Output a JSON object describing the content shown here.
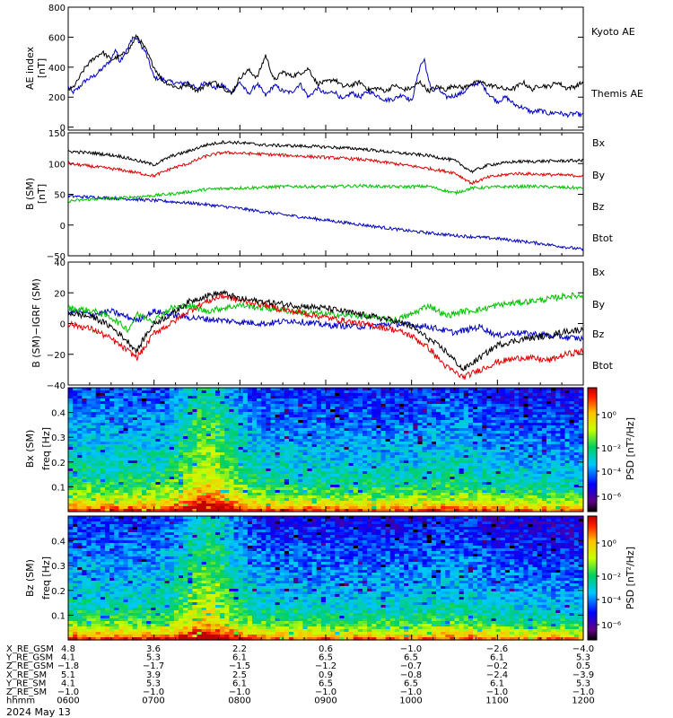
{
  "chart_data": [
    {
      "type": "line",
      "panel": "ae",
      "ylabel_top": "AE index",
      "ylabel_bottom": "[nT]",
      "ylim": [
        -20,
        800
      ],
      "yticks": [
        "800",
        "600",
        "400",
        "200",
        "0"
      ],
      "xlim_hours": [
        6.0,
        12.0
      ],
      "series": [
        {
          "name": "Kyoto AE",
          "color": "#0000c0",
          "x": [
            6.0,
            6.05,
            6.1,
            6.2,
            6.3,
            6.4,
            6.5,
            6.55,
            6.6,
            6.7,
            6.75,
            6.8,
            6.9,
            6.95,
            7.0,
            7.1,
            7.2,
            7.3,
            7.4,
            7.5,
            7.6,
            7.7,
            7.8,
            7.9,
            8.0,
            8.1,
            8.2,
            8.3,
            8.4,
            8.5,
            8.6,
            8.7,
            8.8,
            8.9,
            9.0,
            9.1,
            9.2,
            9.3,
            9.4,
            9.5,
            9.6,
            9.7,
            9.8,
            9.9,
            10.0,
            10.1,
            10.15,
            10.2,
            10.25,
            10.3,
            10.4,
            10.5,
            10.6,
            10.7,
            10.8,
            10.9,
            11.0,
            11.1,
            11.2,
            11.3,
            11.4,
            11.5,
            11.6,
            11.7,
            11.8,
            11.9,
            12.0
          ],
          "y": [
            270,
            230,
            250,
            310,
            340,
            390,
            450,
            520,
            440,
            530,
            600,
            590,
            500,
            420,
            330,
            320,
            300,
            290,
            300,
            250,
            310,
            260,
            280,
            230,
            300,
            220,
            290,
            210,
            280,
            240,
            230,
            290,
            200,
            260,
            220,
            240,
            180,
            230,
            200,
            240,
            210,
            180,
            190,
            220,
            170,
            410,
            450,
            300,
            240,
            260,
            200,
            210,
            230,
            280,
            300,
            220,
            170,
            200,
            150,
            130,
            100,
            110,
            90,
            100,
            80,
            90,
            80
          ]
        },
        {
          "name": "Themis AE",
          "color": "#000000",
          "x": [
            6.0,
            6.05,
            6.1,
            6.2,
            6.3,
            6.4,
            6.5,
            6.6,
            6.7,
            6.8,
            6.9,
            7.0,
            7.1,
            7.2,
            7.3,
            7.4,
            7.5,
            7.6,
            7.7,
            7.8,
            7.9,
            8.0,
            8.1,
            8.2,
            8.3,
            8.4,
            8.5,
            8.6,
            8.7,
            8.8,
            8.9,
            9.0,
            9.1,
            9.2,
            9.3,
            9.4,
            9.5,
            9.6,
            9.7,
            9.8,
            9.9,
            10.0,
            10.1,
            10.2,
            10.3,
            10.4,
            10.5,
            10.6,
            10.7,
            10.8,
            10.9,
            11.0,
            11.1,
            11.2,
            11.3,
            11.4,
            11.5,
            11.6,
            11.7,
            11.8,
            11.9,
            12.0
          ],
          "y": [
            250,
            260,
            300,
            400,
            460,
            500,
            450,
            470,
            510,
            610,
            520,
            400,
            310,
            280,
            260,
            290,
            240,
            280,
            300,
            270,
            220,
            330,
            380,
            330,
            480,
            310,
            370,
            340,
            360,
            390,
            290,
            300,
            320,
            270,
            280,
            300,
            250,
            260,
            240,
            280,
            250,
            260,
            300,
            240,
            270,
            250,
            280,
            260,
            290,
            300,
            280,
            270,
            250,
            260,
            300,
            250,
            280,
            270,
            300,
            260,
            270,
            300
          ]
        }
      ]
    },
    {
      "type": "line",
      "panel": "b_sm",
      "ylabel_top": "B (SM)",
      "ylabel_bottom": "[nT]",
      "ylim": [
        -50,
        150
      ],
      "yticks": [
        "150",
        "100",
        "50",
        "0",
        "−50"
      ],
      "xlim_hours": [
        6.0,
        12.0
      ],
      "series": [
        {
          "name": "Bx",
          "color": "#0000c0",
          "x": [
            6.0,
            6.5,
            7.0,
            7.5,
            8.0,
            8.5,
            9.0,
            9.5,
            10.0,
            10.5,
            11.0,
            11.5,
            12.0
          ],
          "y": [
            47,
            44,
            40,
            35,
            27,
            17,
            8,
            -1,
            -10,
            -17,
            -22,
            -30,
            -40
          ]
        },
        {
          "name": "By",
          "color": "#00c000",
          "x": [
            6.0,
            6.3,
            6.5,
            6.8,
            7.0,
            7.3,
            7.6,
            7.9,
            8.2,
            8.6,
            9.0,
            9.4,
            9.8,
            10.2,
            10.5,
            10.7,
            11.0,
            11.4,
            11.8,
            12.0
          ],
          "y": [
            39,
            42,
            43,
            46,
            48,
            52,
            58,
            60,
            61,
            63,
            62,
            64,
            62,
            63,
            52,
            60,
            62,
            63,
            61,
            60
          ]
        },
        {
          "name": "Bz",
          "color": "#e00000",
          "x": [
            6.0,
            6.3,
            6.6,
            6.8,
            7.0,
            7.2,
            7.4,
            7.6,
            7.8,
            8.0,
            8.3,
            8.6,
            9.0,
            9.4,
            9.8,
            10.2,
            10.5,
            10.7,
            10.9,
            11.2,
            11.6,
            12.0
          ],
          "y": [
            100,
            95,
            90,
            85,
            80,
            92,
            100,
            112,
            118,
            117,
            115,
            113,
            110,
            107,
            100,
            92,
            85,
            68,
            78,
            84,
            82,
            80
          ]
        },
        {
          "name": "Btot",
          "color": "#000000",
          "x": [
            6.0,
            6.3,
            6.6,
            6.8,
            7.0,
            7.2,
            7.4,
            7.6,
            7.8,
            8.0,
            8.3,
            8.6,
            9.0,
            9.4,
            9.8,
            10.2,
            10.5,
            10.7,
            10.9,
            11.2,
            11.6,
            12.0
          ],
          "y": [
            120,
            117,
            112,
            105,
            98,
            112,
            120,
            130,
            135,
            134,
            130,
            129,
            127,
            124,
            118,
            113,
            105,
            87,
            98,
            103,
            104,
            105
          ]
        }
      ]
    },
    {
      "type": "line",
      "panel": "b_minus_igrf",
      "ylabel": "B (SM)−IGRF (SM)",
      "ylim": [
        -40,
        40
      ],
      "yticks": [
        "40",
        "20",
        "0",
        "−20",
        "−40"
      ],
      "xlim_hours": [
        6.0,
        12.0
      ],
      "series": [
        {
          "name": "Bx",
          "color": "#0000c0",
          "x": [
            6.0,
            6.3,
            6.5,
            6.7,
            6.8,
            7.0,
            7.2,
            7.4,
            7.6,
            7.8,
            8.0,
            8.3,
            8.6,
            9.0,
            9.4,
            9.8,
            10.2,
            10.5,
            10.8,
            11.0,
            11.2,
            11.5,
            11.8,
            12.0
          ],
          "y": [
            8,
            6,
            8,
            4,
            2,
            8,
            6,
            4,
            3,
            2,
            1,
            0,
            2,
            -1,
            -2,
            0,
            -2,
            -6,
            -2,
            -8,
            -6,
            -7,
            -9,
            -10
          ]
        },
        {
          "name": "By",
          "color": "#00c000",
          "x": [
            6.0,
            6.3,
            6.5,
            6.7,
            6.8,
            7.0,
            7.2,
            7.4,
            7.6,
            7.8,
            8.0,
            8.3,
            8.6,
            9.0,
            9.4,
            9.8,
            10.0,
            10.2,
            10.4,
            10.6,
            10.8,
            11.0,
            11.3,
            11.6,
            11.8,
            12.0
          ],
          "y": [
            10,
            8,
            4,
            -4,
            6,
            2,
            10,
            12,
            8,
            10,
            12,
            10,
            8,
            6,
            5,
            2,
            6,
            12,
            5,
            8,
            9,
            12,
            14,
            16,
            18,
            18
          ]
        },
        {
          "name": "Bz",
          "color": "#e00000",
          "x": [
            6.0,
            6.3,
            6.5,
            6.7,
            6.8,
            6.9,
            7.0,
            7.2,
            7.4,
            7.6,
            7.8,
            8.0,
            8.3,
            8.6,
            9.0,
            9.4,
            9.8,
            10.0,
            10.2,
            10.4,
            10.6,
            10.8,
            11.0,
            11.3,
            11.6,
            11.8,
            12.0
          ],
          "y": [
            0,
            -4,
            -10,
            -18,
            -22,
            -15,
            -6,
            0,
            8,
            14,
            18,
            15,
            12,
            8,
            4,
            0,
            -4,
            -8,
            -16,
            -28,
            -35,
            -30,
            -25,
            -22,
            -24,
            -20,
            -18
          ]
        },
        {
          "name": "Btot",
          "color": "#000000",
          "x": [
            6.0,
            6.3,
            6.5,
            6.7,
            6.8,
            6.9,
            7.0,
            7.2,
            7.4,
            7.6,
            7.8,
            8.0,
            8.3,
            8.6,
            9.0,
            9.4,
            9.8,
            10.0,
            10.2,
            10.4,
            10.6,
            10.8,
            11.0,
            11.3,
            11.6,
            11.8,
            12.0
          ],
          "y": [
            7,
            4,
            -2,
            -12,
            -18,
            -8,
            0,
            6,
            14,
            18,
            20,
            16,
            14,
            12,
            10,
            6,
            2,
            -2,
            -10,
            -18,
            -30,
            -22,
            -14,
            -10,
            -8,
            -5,
            -4
          ]
        }
      ]
    },
    {
      "type": "heatmap",
      "panel": "bx_psd",
      "ylabel_top": "Bx (SM)",
      "ylabel_bottom": "freq [Hz]",
      "ylim": [
        0,
        0.5
      ],
      "yticks": [
        "0.4",
        "0.3",
        "0.2",
        "0.1"
      ],
      "xlim_hours": [
        6.0,
        12.0
      ],
      "colorbar_label": "PSD [nT²/Hz]",
      "colorbar_ticks": [
        "10⁰",
        "10⁻²",
        "10⁻⁴",
        "10⁻⁶"
      ],
      "colorbar_scale": "log",
      "colormap": "rainbow"
    },
    {
      "type": "heatmap",
      "panel": "bz_psd",
      "ylabel_top": "Bz (SM)",
      "ylabel_bottom": "freq [Hz]",
      "ylim": [
        0,
        0.5
      ],
      "yticks": [
        "0.4",
        "0.3",
        "0.2",
        "0.1"
      ],
      "xlim_hours": [
        6.0,
        12.0
      ],
      "colorbar_label": "PSD [nT²/Hz]",
      "colorbar_ticks": [
        "10⁰",
        "10⁻²",
        "10⁻⁴",
        "10⁻⁶"
      ],
      "colorbar_scale": "log",
      "colormap": "rainbow"
    }
  ],
  "ephemeris": {
    "rows": [
      {
        "label": "X_RE_GSM",
        "values": [
          "4.8",
          "3.6",
          "2.2",
          "0.6",
          "−1.0",
          "−2.6",
          "−4.0"
        ]
      },
      {
        "label": "Y_RE_GSM",
        "values": [
          "4.1",
          "5.3",
          "6.1",
          "6.5",
          "6.5",
          "6.1",
          "5.3"
        ]
      },
      {
        "label": "Z_RE_GSM",
        "values": [
          "−1.8",
          "−1.7",
          "−1.5",
          "−1.2",
          "−0.7",
          "−0.2",
          "0.5"
        ]
      },
      {
        "label": "X_RE_SM",
        "values": [
          "5.1",
          "3.9",
          "2.5",
          "0.9",
          "−0.8",
          "−2.4",
          "−3.9"
        ]
      },
      {
        "label": "Y_RE_SM",
        "values": [
          "4.1",
          "5.3",
          "6.1",
          "6.5",
          "6.5",
          "6.1",
          "5.3"
        ]
      },
      {
        "label": "Z_RE_SM",
        "values": [
          "−1.0",
          "−1.0",
          "−1.0",
          "−1.0",
          "−1.0",
          "−1.0",
          "−1.0"
        ]
      },
      {
        "label": "hhmm",
        "values": [
          "0600",
          "0700",
          "0800",
          "0900",
          "1000",
          "1100",
          "1200"
        ]
      }
    ],
    "date": "2024 May 13"
  }
}
